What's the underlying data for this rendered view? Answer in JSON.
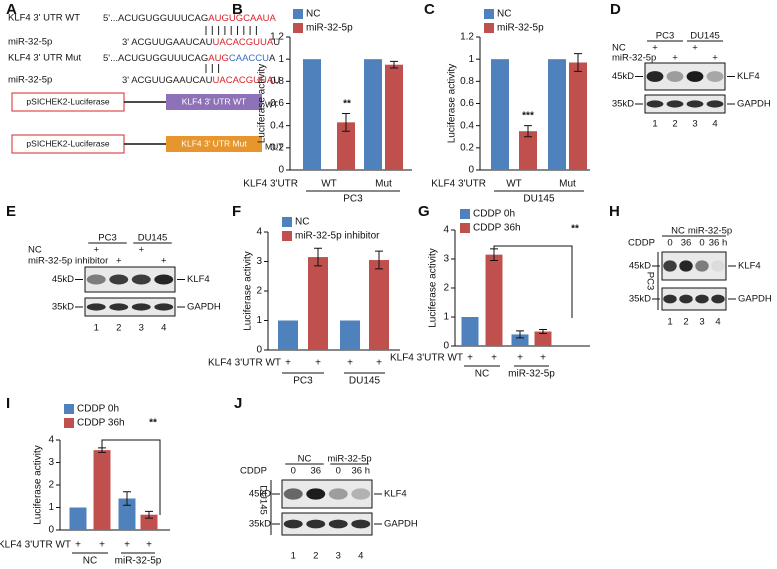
{
  "panel_labels": [
    "A",
    "B",
    "C",
    "D",
    "E",
    "F",
    "G",
    "H",
    "I",
    "J"
  ],
  "sequence_panel": {
    "rows": [
      {
        "label": "KLF4 3' UTR WT",
        "parts": [
          {
            "text": "5'...ACUGUGGUUUCAG",
            "color": "#222222"
          },
          {
            "text": "AUGUGCAAUA",
            "color": "#d7262b"
          }
        ]
      },
      {
        "label": "miR-32-5p",
        "parts": [
          {
            "text": "3' ACGUUGAAUCAU",
            "color": "#222222"
          },
          {
            "text": "UACACGUUA",
            "color": "#d7262b"
          },
          {
            "text": "U",
            "color": "#222222"
          }
        ]
      },
      {
        "label": "KLF4 3' UTR Mut",
        "parts": [
          {
            "text": "5'...ACUGUGGUUUCAG",
            "color": "#222222"
          },
          {
            "text": "AUG",
            "color": "#d7262b"
          },
          {
            "text": "CAACCU",
            "color": "#3a6fc4"
          },
          {
            "text": "A",
            "color": "#222222"
          }
        ]
      },
      {
        "label": "miR-32-5p",
        "parts": [
          {
            "text": "3' ACGUUGAAUCAU",
            "color": "#222222"
          },
          {
            "text": "UACACGUUA",
            "color": "#d7262b"
          },
          {
            "text": "U",
            "color": "#222222"
          }
        ]
      }
    ],
    "constructs": [
      {
        "vector": "pSICHEK2-Luciferase",
        "insert": "KLF4 3' UTR WT",
        "insert_color": "#8e72b8",
        "tag": "WT"
      },
      {
        "vector": "pSICHEK2-Luciferase",
        "insert": "KLF4 3' UTR Mut",
        "insert_color": "#e6962c",
        "tag": "MUT"
      }
    ]
  },
  "chart_data": [
    {
      "type": "bar",
      "y_label": "Luciferase activity",
      "ylim": [
        0,
        1.2
      ],
      "yticks": [
        0,
        0.2,
        0.4,
        0.6,
        0.8,
        1,
        1.2
      ],
      "row_label": "KLF4 3'UTR",
      "categories": [
        "WT",
        "Mut"
      ],
      "group_label": "PC3",
      "annotations": [
        "**"
      ],
      "series": [
        {
          "name": "NC",
          "color": "#4f81bd",
          "values": [
            1,
            1
          ]
        },
        {
          "name": "miR-32-5p",
          "color": "#c0504d",
          "values": [
            0.43,
            0.95
          ],
          "errors": [
            0.08,
            0.03
          ]
        }
      ]
    },
    {
      "type": "bar",
      "y_label": "Luciferase activity",
      "ylim": [
        0,
        1.2
      ],
      "yticks": [
        0,
        0.2,
        0.4,
        0.6,
        0.8,
        1,
        1.2
      ],
      "row_label": "KLF4 3'UTR",
      "categories": [
        "WT",
        "Mut"
      ],
      "group_label": "DU145",
      "annotations": [
        "***"
      ],
      "series": [
        {
          "name": "NC",
          "color": "#4f81bd",
          "values": [
            1,
            1
          ]
        },
        {
          "name": "miR-32-5p",
          "color": "#c0504d",
          "values": [
            0.35,
            0.97
          ],
          "errors": [
            0.05,
            0.08
          ]
        }
      ]
    },
    {
      "type": "bar",
      "y_label": "Luciferase activity",
      "ylim": [
        0,
        4
      ],
      "yticks": [
        0,
        1,
        2,
        3,
        4
      ],
      "row_label": "KLF4 3'UTR WT",
      "bar_marks": [
        "+",
        "+",
        "+",
        "+"
      ],
      "categories": [
        "PC3",
        "DU145"
      ],
      "series": [
        {
          "name": "NC",
          "color": "#4f81bd",
          "values": [
            1,
            1
          ]
        },
        {
          "name": "miR-32-5p inhibitor",
          "color": "#c0504d",
          "values": [
            3.15,
            3.05
          ],
          "errors": [
            0.3,
            0.3
          ]
        }
      ]
    },
    {
      "type": "bar",
      "y_label": "Luciferase activity",
      "ylim": [
        0,
        4
      ],
      "yticks": [
        0,
        1,
        2,
        3,
        4
      ],
      "row_label": "KLF4 3'UTR WT",
      "bar_marks": [
        "+",
        "+",
        "+",
        "+"
      ],
      "categories": [
        "NC",
        "miR-32-5p"
      ],
      "annotations": [
        "**"
      ],
      "series": [
        {
          "name": "CDDP 0h",
          "color": "#4f81bd",
          "values": [
            1,
            0.4
          ],
          "errors": [
            null,
            0.12
          ]
        },
        {
          "name": "CDDP 36h",
          "color": "#c0504d",
          "values": [
            3.15,
            0.5
          ],
          "errors": [
            0.2,
            0.07
          ]
        }
      ]
    },
    {
      "type": "bar",
      "y_label": "Luciferase activity",
      "ylim": [
        0,
        4
      ],
      "yticks": [
        0,
        1,
        2,
        3,
        4
      ],
      "row_label": "KLF4 3'UTR WT",
      "bar_marks": [
        "+",
        "+",
        "+",
        "+"
      ],
      "categories": [
        "NC",
        "miR-32-5p"
      ],
      "annotations": [
        "**"
      ],
      "series": [
        {
          "name": "CDDP 0h",
          "color": "#4f81bd",
          "values": [
            1,
            1.4
          ],
          "errors": [
            null,
            0.3
          ]
        },
        {
          "name": "CDDP 36h",
          "color": "#c0504d",
          "values": [
            3.55,
            0.68
          ],
          "errors": [
            0.1,
            0.15
          ]
        }
      ]
    }
  ],
  "blots": [
    {
      "groups": [
        "PC3",
        "DU145"
      ],
      "conditions": [
        {
          "label": "NC",
          "marks": [
            "+",
            null,
            "+",
            null
          ]
        },
        {
          "label": "miR-32-5p",
          "marks": [
            null,
            "+",
            null,
            "+"
          ]
        }
      ],
      "rows": [
        {
          "size": "45kD",
          "band": "KLF4"
        },
        {
          "size": "35kD",
          "band": "GAPDH"
        }
      ],
      "lanes": [
        1,
        2,
        3,
        4
      ]
    },
    {
      "groups": [
        "PC3",
        "DU145"
      ],
      "conditions": [
        {
          "label": "NC",
          "marks": [
            "+",
            null,
            "+",
            null
          ]
        },
        {
          "label": "miR-32-5p inhibitor",
          "marks": [
            null,
            "+",
            null,
            "+"
          ]
        }
      ],
      "rows": [
        {
          "size": "45kD",
          "band": "KLF4"
        },
        {
          "size": "35kD",
          "band": "GAPDH"
        }
      ],
      "lanes": [
        1,
        2,
        3,
        4
      ]
    },
    {
      "groups": [
        "NC",
        "miR-32-5p"
      ],
      "conditions": [
        {
          "label": "CDDP",
          "marks": [
            "0",
            "36",
            "0",
            "36 h"
          ]
        }
      ],
      "rows": [
        {
          "size": "45kD",
          "band": "KLF4"
        },
        {
          "size": "35kD",
          "band": "GAPDH"
        }
      ],
      "lanes": [
        1,
        2,
        3,
        4
      ],
      "side_label": "PC3"
    },
    {
      "groups": [
        "NC",
        "miR-32-5p"
      ],
      "conditions": [
        {
          "label": "CDDP",
          "marks": [
            "0",
            "36",
            "0",
            "36 h"
          ]
        }
      ],
      "rows": [
        {
          "size": "45kD",
          "band": "KLF4"
        },
        {
          "size": "35kD",
          "band": "GAPDH"
        }
      ],
      "lanes": [
        1,
        2,
        3,
        4
      ],
      "side_label": "DU145"
    }
  ]
}
